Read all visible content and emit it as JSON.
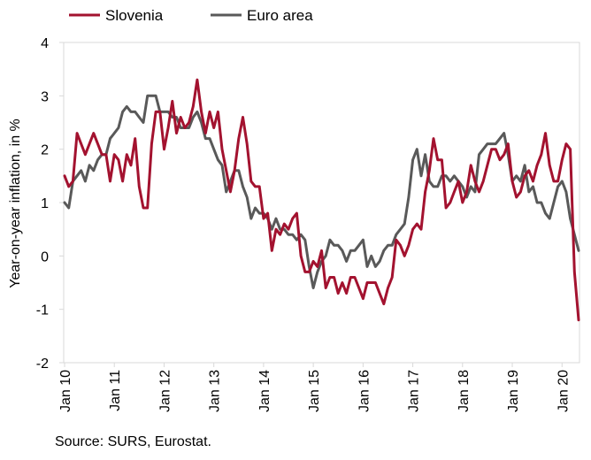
{
  "source": "Source: SURS, Eurostat.",
  "chart_data": {
    "type": "line",
    "ylabel": "Year-on-year inflation, in %",
    "xlabel": "",
    "ylim": [
      -2,
      4
    ],
    "yticks": [
      "4",
      "3",
      "2",
      "1",
      "0",
      "-1",
      "-2"
    ],
    "xticks": [
      "Jan 10",
      "Jan 11",
      "Jan 12",
      "Jan 13",
      "Jan 14",
      "Jan 15",
      "Jan 16",
      "Jan 17",
      "Jan 18",
      "Jan 19",
      "Jan 20"
    ],
    "x_start": "Jan 10",
    "x_end": "Apr 20",
    "legend_position": "top-left",
    "grid": false,
    "series": [
      {
        "name": "Slovenia",
        "color": "#a3122f",
        "values": [
          1.5,
          1.3,
          1.4,
          2.3,
          2.1,
          1.9,
          2.1,
          2.3,
          2.1,
          1.9,
          1.9,
          1.4,
          1.9,
          1.8,
          1.4,
          1.9,
          1.7,
          2.2,
          1.3,
          0.9,
          0.9,
          2.1,
          2.7,
          2.7,
          2.0,
          2.4,
          2.9,
          2.3,
          2.6,
          2.4,
          2.5,
          2.8,
          3.3,
          2.7,
          2.3,
          2.7,
          2.4,
          2.7,
          2.0,
          1.6,
          1.2,
          1.6,
          2.2,
          2.6,
          2.1,
          1.4,
          1.3,
          1.3,
          0.7,
          0.8,
          0.1,
          0.5,
          0.4,
          0.6,
          0.5,
          0.7,
          0.8,
          0.0,
          -0.3,
          -0.3,
          -0.1,
          -0.2,
          0.1,
          -0.6,
          -0.4,
          -0.4,
          -0.7,
          -0.5,
          -0.7,
          -0.4,
          -0.4,
          -0.6,
          -0.8,
          -0.5,
          -0.5,
          -0.5,
          -0.7,
          -0.9,
          -0.6,
          -0.4,
          0.3,
          0.2,
          0.0,
          0.2,
          0.5,
          0.6,
          0.5,
          1.2,
          1.6,
          2.2,
          1.8,
          1.8,
          0.9,
          1.0,
          1.2,
          1.4,
          1.0,
          1.2,
          1.7,
          1.4,
          1.2,
          1.4,
          1.7,
          2.0,
          2.0,
          1.8,
          1.9,
          2.1,
          1.4,
          1.1,
          1.2,
          1.5,
          1.6,
          1.4,
          1.7,
          1.9,
          2.3,
          1.7,
          1.4,
          1.4,
          1.8,
          2.1,
          2.0,
          -0.3,
          -1.2
        ]
      },
      {
        "name": "Euro area",
        "color": "#595959",
        "values": [
          1.0,
          0.9,
          1.4,
          1.5,
          1.6,
          1.4,
          1.7,
          1.6,
          1.8,
          1.9,
          1.9,
          2.2,
          2.3,
          2.4,
          2.7,
          2.8,
          2.7,
          2.7,
          2.6,
          2.5,
          3.0,
          3.0,
          3.0,
          2.7,
          2.7,
          2.7,
          2.6,
          2.6,
          2.4,
          2.4,
          2.4,
          2.6,
          2.7,
          2.5,
          2.2,
          2.2,
          2.0,
          1.8,
          1.7,
          1.2,
          1.4,
          1.6,
          1.6,
          1.3,
          1.1,
          0.7,
          0.9,
          0.8,
          0.8,
          0.7,
          0.5,
          0.7,
          0.5,
          0.5,
          0.4,
          0.4,
          0.3,
          0.4,
          0.3,
          -0.2,
          -0.6,
          -0.3,
          -0.1,
          0.0,
          0.3,
          0.2,
          0.2,
          0.1,
          -0.1,
          0.1,
          0.1,
          0.2,
          0.3,
          -0.2,
          0.0,
          -0.2,
          -0.1,
          0.1,
          0.2,
          0.2,
          0.4,
          0.5,
          0.6,
          1.1,
          1.8,
          2.0,
          1.5,
          1.9,
          1.4,
          1.3,
          1.3,
          1.5,
          1.5,
          1.4,
          1.5,
          1.4,
          1.3,
          1.1,
          1.3,
          1.2,
          1.9,
          2.0,
          2.1,
          2.1,
          2.1,
          2.2,
          2.3,
          1.9,
          1.4,
          1.5,
          1.4,
          1.7,
          1.2,
          1.3,
          1.0,
          1.0,
          0.8,
          0.7,
          1.0,
          1.3,
          1.4,
          1.2,
          0.7,
          0.4,
          0.1
        ]
      }
    ]
  }
}
